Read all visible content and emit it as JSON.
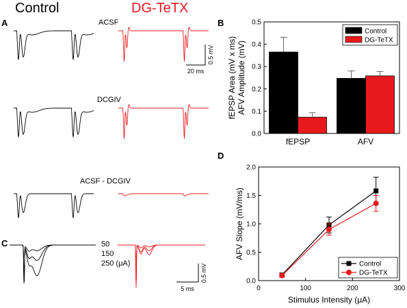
{
  "colors": {
    "control": "#000000",
    "tetx": "#e8191c",
    "axis": "#000000"
  },
  "headers": {
    "control": "Control",
    "tetx": "DG-TeTX"
  },
  "panel_a": {
    "label": "A",
    "row_labels": [
      "ACSF",
      "DCGIV",
      "ACSF - DCGIV"
    ],
    "scale_amp": "0.5 mV",
    "scale_time": "20 ms"
  },
  "panel_c": {
    "label": "C",
    "intensity_labels": [
      "50",
      "150",
      "250 (μA)"
    ],
    "scale_amp": "0.5 mV",
    "scale_time": "5 ms"
  },
  "chart_data": [
    {
      "panel": "B",
      "type": "bar",
      "categories": [
        "fEPSP",
        "AFV"
      ],
      "series": [
        {
          "name": "Control",
          "values": [
            0.365,
            0.247
          ],
          "errors": [
            0.066,
            0.033
          ]
        },
        {
          "name": "DG-TeTX",
          "values": [
            0.073,
            0.258
          ],
          "errors": [
            0.02,
            0.02
          ]
        }
      ],
      "ylabel": [
        "fEPSP Area (mV x ms)",
        "AFV Amplitude (mV)"
      ],
      "ylim": [
        0,
        0.5
      ],
      "yticks": [
        "0.0",
        "0.1",
        "0.2",
        "0.3",
        "0.4",
        "0.5"
      ],
      "legend": "top-right",
      "grid": false
    },
    {
      "panel": "D",
      "type": "line",
      "x": [
        50,
        150,
        250
      ],
      "series": [
        {
          "name": "Control",
          "marker": "square",
          "values": [
            0.1,
            0.98,
            1.58
          ],
          "errors": [
            0.03,
            0.14,
            0.24
          ]
        },
        {
          "name": "DG-TeTX",
          "marker": "circle",
          "values": [
            0.09,
            0.9,
            1.36
          ],
          "errors": [
            0.03,
            0.1,
            0.14
          ]
        }
      ],
      "xlabel": "Stimulus Intensity (μA)",
      "ylabel": "AFV Slope (mV/ms)",
      "xlim": [
        0,
        300
      ],
      "ylim": [
        0,
        2.0
      ],
      "xticks": [
        "0",
        "100",
        "200",
        "300"
      ],
      "yticks": [
        "0.0",
        "0.5",
        "1.0",
        "1.5",
        "2.0"
      ],
      "legend": "bottom-right",
      "grid": false
    }
  ]
}
